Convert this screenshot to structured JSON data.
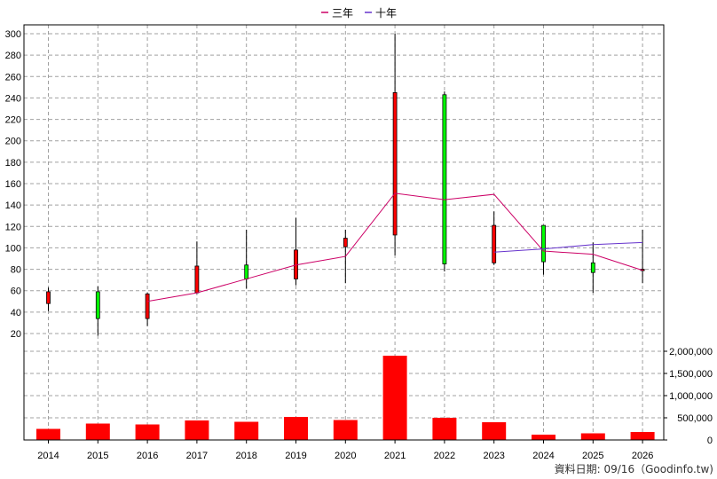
{
  "chart_data": {
    "type": "candlestick-with-volume",
    "legend": [
      {
        "name": "三年",
        "color": "#cc0066"
      },
      {
        "name": "十年",
        "color": "#6633cc"
      }
    ],
    "legend_placement": "top-center",
    "grid": true,
    "categories": [
      "2014",
      "2015",
      "2016",
      "2017",
      "2018",
      "2019",
      "2020",
      "2021",
      "2022",
      "2023",
      "2024",
      "2025",
      "2026"
    ],
    "price_axis": {
      "ylim": [
        0,
        305
      ],
      "ticks": [
        "20",
        "40",
        "60",
        "80",
        "100",
        "120",
        "140",
        "160",
        "180",
        "200",
        "220",
        "240",
        "260",
        "280",
        "300"
      ]
    },
    "volume_axis": {
      "ylim": [
        0,
        2450000
      ],
      "ticks": [
        "0",
        "500,000",
        "1,000,000",
        "1,500,000",
        "2,000,000"
      ]
    },
    "candles": [
      {
        "year": "2014",
        "open": 48,
        "close": 59,
        "high": 63,
        "low": 41,
        "direction": "up"
      },
      {
        "year": "2015",
        "open": 59,
        "close": 34,
        "high": 64,
        "low": 18,
        "direction": "down"
      },
      {
        "year": "2016",
        "open": 34,
        "close": 57,
        "high": 58,
        "low": 27,
        "direction": "up"
      },
      {
        "year": "2017",
        "open": 58,
        "close": 83,
        "high": 106,
        "low": 57,
        "direction": "up"
      },
      {
        "year": "2018",
        "open": 84,
        "close": 71,
        "high": 117,
        "low": 62,
        "direction": "down"
      },
      {
        "year": "2019",
        "open": 71,
        "close": 98,
        "high": 128,
        "low": 65,
        "direction": "up"
      },
      {
        "year": "2020",
        "open": 101,
        "close": 109,
        "high": 117,
        "low": 67,
        "direction": "up"
      },
      {
        "year": "2021",
        "open": 112,
        "close": 245,
        "high": 300,
        "low": 93,
        "direction": "up"
      },
      {
        "year": "2022",
        "open": 243,
        "close": 85,
        "high": 246,
        "low": 78,
        "direction": "down"
      },
      {
        "year": "2023",
        "open": 86,
        "close": 121,
        "high": 134,
        "low": 84,
        "direction": "up"
      },
      {
        "year": "2024",
        "open": 121,
        "close": 87,
        "high": 121,
        "low": 75,
        "direction": "down"
      },
      {
        "year": "2025",
        "open": 86,
        "close": 77,
        "high": 105,
        "low": 58,
        "direction": "down"
      },
      {
        "year": "2026",
        "open": 80,
        "close": 80,
        "high": 117,
        "low": 67,
        "direction": "flat"
      }
    ],
    "series": [
      {
        "name": "三年",
        "color": "#cc0066",
        "x": [
          "2016",
          "2017",
          "2018",
          "2019",
          "2020",
          "2021",
          "2022",
          "2023",
          "2024",
          "2025",
          "2026"
        ],
        "values": [
          50,
          58,
          71,
          84,
          92,
          151,
          145,
          150,
          97,
          94,
          79
        ]
      },
      {
        "name": "十年",
        "color": "#6633cc",
        "x": [
          "2023",
          "2024",
          "2025",
          "2026"
        ],
        "values": [
          96,
          99,
          103,
          105
        ]
      }
    ],
    "volume": [
      250000,
      370000,
      350000,
      440000,
      410000,
      520000,
      450000,
      1900000,
      500000,
      400000,
      120000,
      150000,
      180000
    ],
    "colors": {
      "up": "#ff0000",
      "down": "#00ff00",
      "flat": "#ff0000",
      "volume": "#ff0000"
    }
  },
  "footer": "資料日期: 09/16（Goodinfo.tw)"
}
